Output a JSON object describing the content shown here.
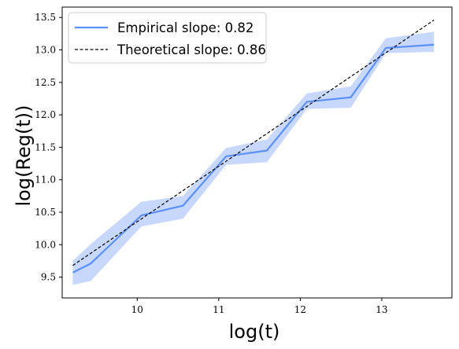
{
  "chart_data": {
    "type": "line",
    "xlabel": "log(t)",
    "ylabel": "log(Reg(t))",
    "xlim": [
      9.08,
      13.86
    ],
    "ylim": [
      9.18,
      13.66
    ],
    "xticks": [
      10,
      11,
      12,
      13
    ],
    "yticks": [
      9.5,
      10.0,
      10.5,
      11.0,
      11.5,
      12.0,
      12.5,
      13.0,
      13.5
    ],
    "xtick_labels": [
      "10",
      "11",
      "12",
      "13"
    ],
    "ytick_labels": [
      "9.5",
      "10.0",
      "10.5",
      "11.0",
      "11.5",
      "12.0",
      "12.5",
      "13.0",
      "13.5"
    ],
    "grid": false,
    "legend_position": "top-left",
    "series": [
      {
        "name": "Empirical slope: 0.82",
        "style": "solid",
        "color": "#5b8ff9",
        "band_color": "#a9c3fb",
        "x": [
          9.21,
          9.43,
          10.05,
          10.56,
          11.09,
          11.59,
          12.08,
          12.62,
          13.05,
          13.64
        ],
        "y": [
          9.57,
          9.71,
          10.45,
          10.6,
          11.36,
          11.45,
          12.2,
          12.27,
          13.03,
          13.08
        ],
        "lower": [
          9.38,
          9.44,
          10.28,
          10.4,
          11.23,
          11.27,
          12.09,
          12.11,
          12.95,
          12.97
        ],
        "upper": [
          9.75,
          10.01,
          10.66,
          10.75,
          11.49,
          11.62,
          12.33,
          12.44,
          13.18,
          13.28
        ]
      },
      {
        "name": "Theoretical slope: 0.86",
        "style": "dashed",
        "color": "#000000",
        "x": [
          9.21,
          13.64
        ],
        "y": [
          9.68,
          13.46
        ]
      }
    ]
  }
}
